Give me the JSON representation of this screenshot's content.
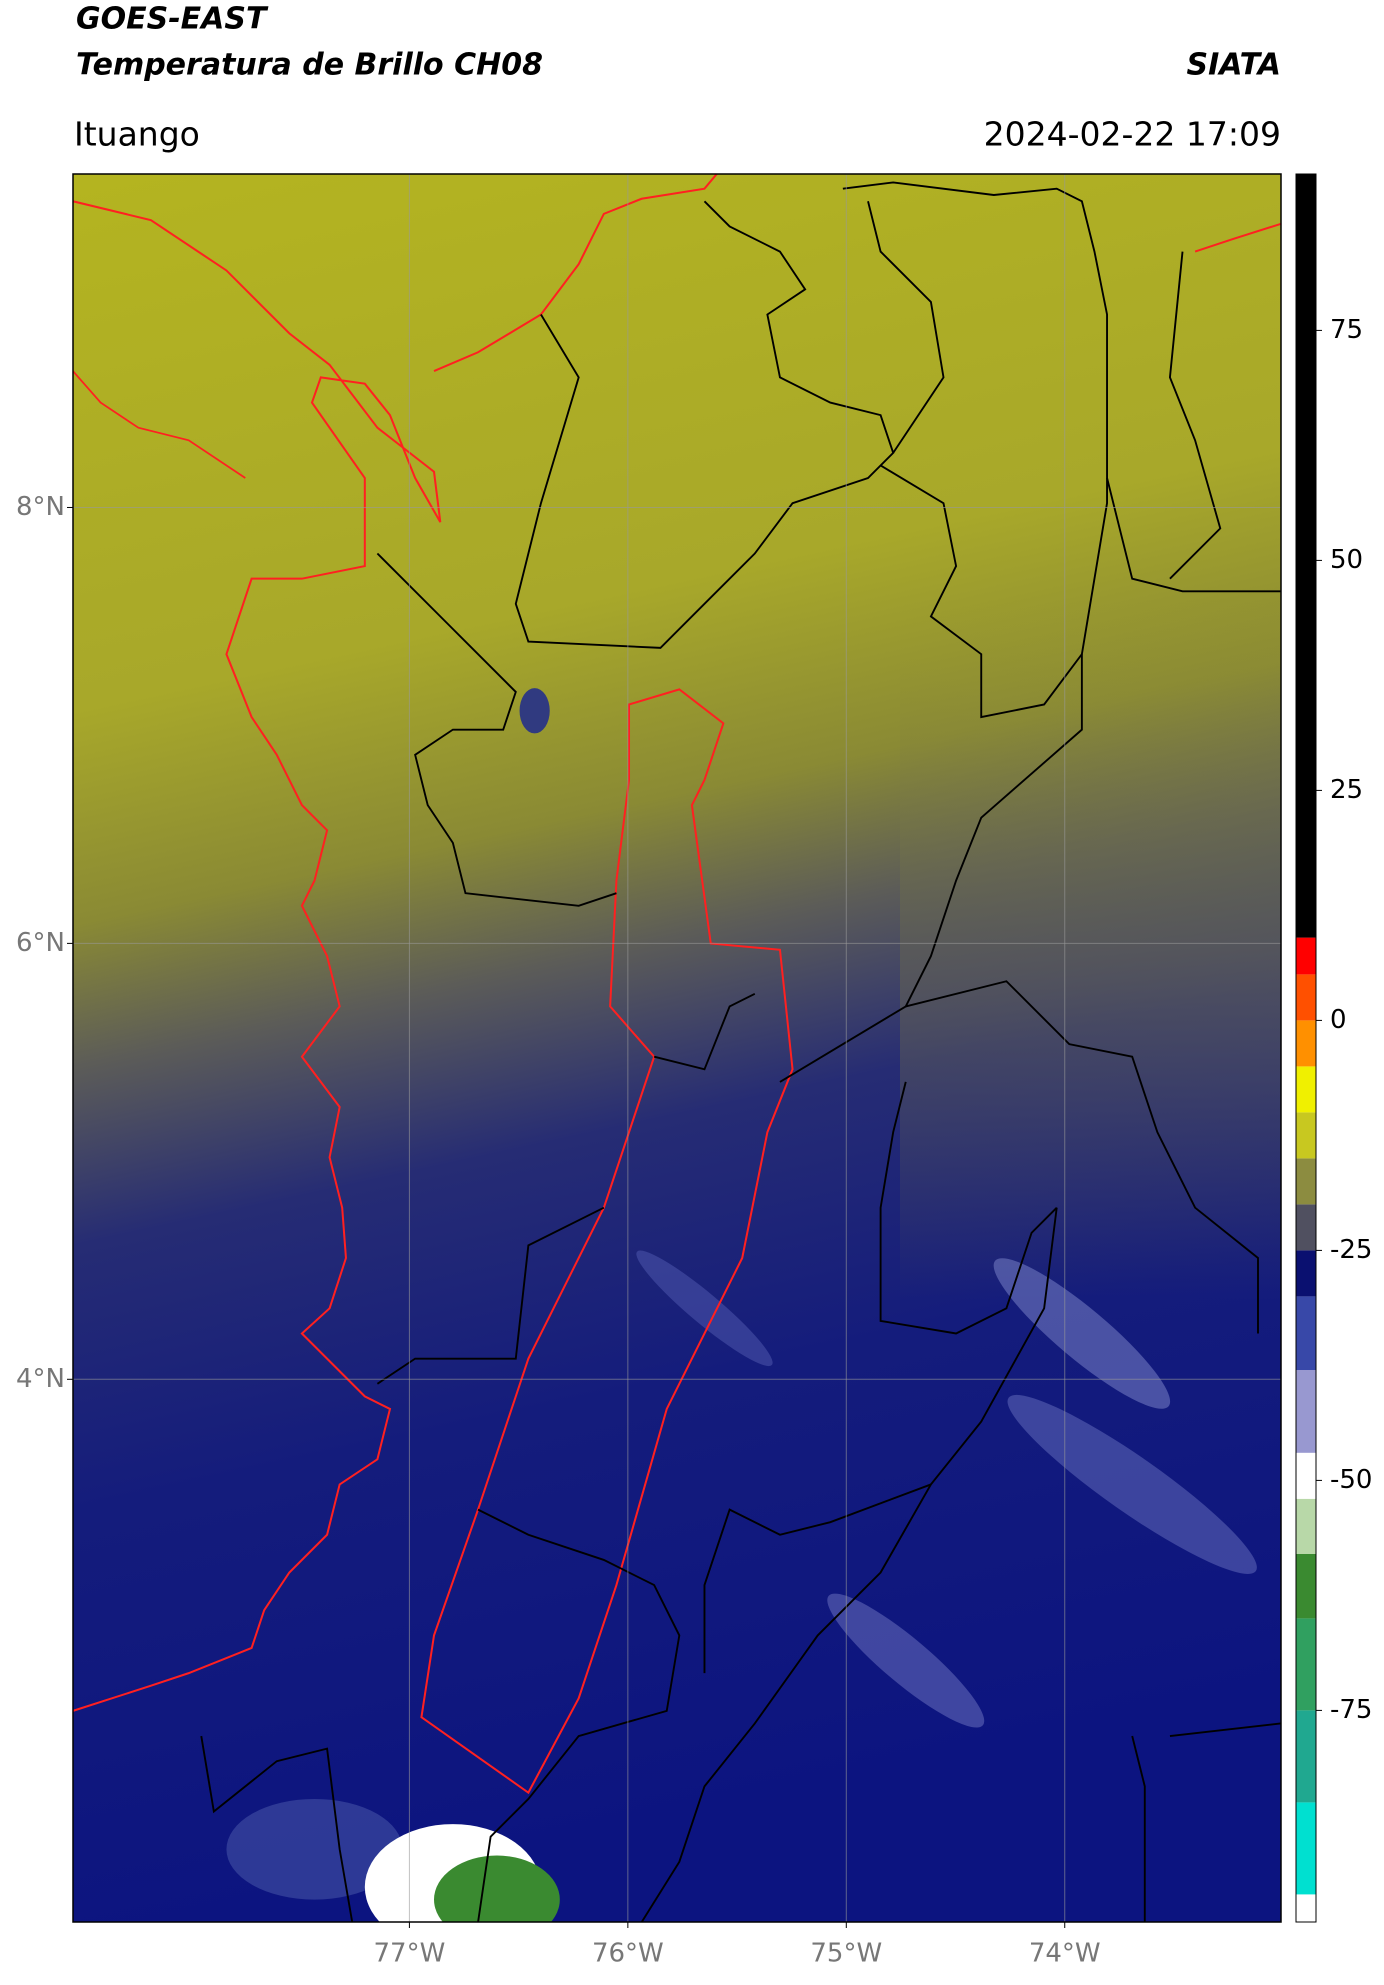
{
  "chart_data": {
    "type": "map",
    "title": "GOES-EAST",
    "subtitle": "Temperatura de Brillo CH08",
    "source": "SIATA",
    "location": "Ituango",
    "timestamp": "2024-02-22 17:09",
    "xlim": [
      -78.54,
      -73.01
    ],
    "ylim": [
      1.51,
      9.53
    ],
    "xticks": [
      {
        "value": -77,
        "label": "77°W"
      },
      {
        "value": -76,
        "label": "76°W"
      },
      {
        "value": -75,
        "label": "75°W"
      },
      {
        "value": -74,
        "label": "74°W"
      }
    ],
    "yticks": [
      {
        "value": 8,
        "label": "8°N"
      },
      {
        "value": 6,
        "label": "6°N"
      },
      {
        "value": 4,
        "label": "4°N"
      }
    ],
    "grid": true,
    "colorbar": {
      "lim": [
        -98,
        92
      ],
      "ticks": [
        75,
        50,
        25,
        0,
        -25,
        -50,
        -75
      ],
      "colormap": [
        {
          "value": -98,
          "color": "#ffffff"
        },
        {
          "value": -95,
          "color": "#00e0d0"
        },
        {
          "value": -85,
          "color": "#20a890"
        },
        {
          "value": -75,
          "color": "#30a060"
        },
        {
          "value": -65,
          "color": "#3a8a30"
        },
        {
          "value": -58,
          "color": "#b8d8a8"
        },
        {
          "value": -52,
          "color": "#ffffff"
        },
        {
          "value": -47,
          "color": "#9898d0"
        },
        {
          "value": -38,
          "color": "#3848a8"
        },
        {
          "value": -30,
          "color": "#0a1070"
        },
        {
          "value": -25,
          "color": "#505060"
        },
        {
          "value": -20,
          "color": "#8c8c40"
        },
        {
          "value": -15,
          "color": "#c8c820"
        },
        {
          "value": -10,
          "color": "#f0f000"
        },
        {
          "value": -5,
          "color": "#ff9000"
        },
        {
          "value": 0,
          "color": "#ff5000"
        },
        {
          "value": 5,
          "color": "#ff0000"
        },
        {
          "value": 9,
          "color": "#000000"
        }
      ]
    }
  }
}
